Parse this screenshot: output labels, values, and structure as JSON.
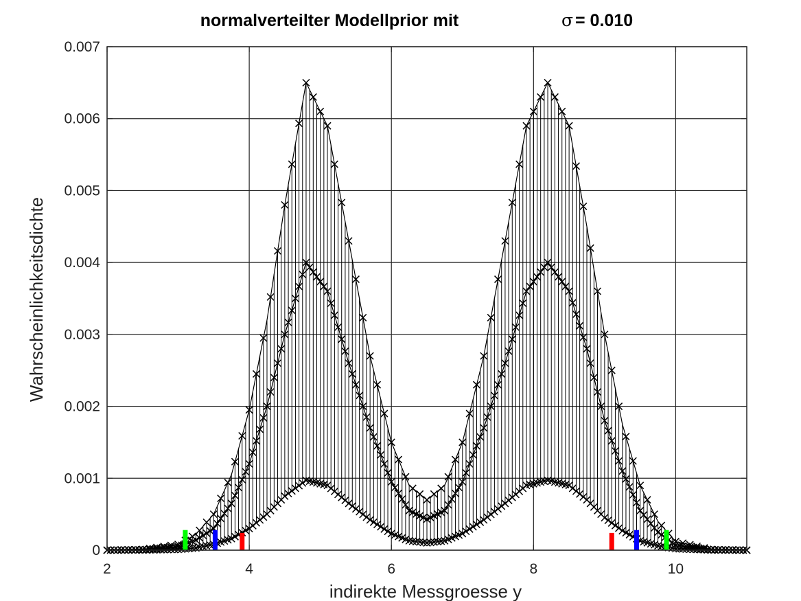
{
  "chart_data": {
    "type": "line",
    "title": "normalverteilter Modellprior mit",
    "title_symbol": "σ",
    "title_value": " = 0.010",
    "xlabel": "indirekte Messgroesse y",
    "ylabel": "Wahrscheinlichkeitsdichte",
    "xlim": [
      2,
      11
    ],
    "ylim": [
      0,
      0.007
    ],
    "x_ticks": [
      2,
      4,
      6,
      8,
      10
    ],
    "x_tick_labels": [
      "2",
      "4",
      "6",
      "8",
      "10"
    ],
    "y_ticks": [
      0,
      0.001,
      0.002,
      0.003,
      0.004,
      0.005,
      0.006,
      0.007
    ],
    "y_tick_labels": [
      "0",
      "0.001",
      "0.002",
      "0.003",
      "0.004",
      "0.005",
      "0.006",
      "0.007"
    ],
    "grid": true,
    "legend": "none",
    "marker": "x",
    "series": [
      {
        "x": [
          2.0,
          2.5,
          3.0,
          3.25,
          3.5,
          3.75,
          4.0,
          4.25,
          4.5,
          4.8,
          5.1,
          5.4,
          5.7,
          6.0,
          6.25,
          6.5,
          6.75,
          7.0,
          7.3,
          7.6,
          7.9,
          8.2,
          8.5,
          8.75,
          9.0,
          9.25,
          9.5,
          9.75,
          10.0,
          10.5,
          11.0
        ],
        "y": [
          0.0,
          1e-05,
          8e-05,
          0.00022,
          0.0005,
          0.00105,
          0.00195,
          0.0032,
          0.0048,
          0.0065,
          0.0059,
          0.0043,
          0.0027,
          0.0015,
          0.0009,
          0.0007,
          0.0009,
          0.0015,
          0.0027,
          0.0043,
          0.0059,
          0.0065,
          0.0059,
          0.0045,
          0.003,
          0.00175,
          0.0009,
          0.0004,
          0.00012,
          1e-05,
          0.0
        ]
      },
      {
        "x": [
          2.0,
          2.5,
          3.0,
          3.25,
          3.5,
          3.75,
          4.0,
          4.25,
          4.5,
          4.8,
          5.1,
          5.4,
          5.7,
          6.0,
          6.25,
          6.5,
          6.75,
          7.0,
          7.3,
          7.6,
          7.9,
          8.2,
          8.5,
          8.75,
          9.0,
          9.25,
          9.5,
          9.75,
          10.0,
          10.5,
          11.0
        ],
        "y": [
          0.0,
          6e-06,
          5e-05,
          0.00014,
          0.0003,
          0.00065,
          0.0012,
          0.002,
          0.003,
          0.004,
          0.0036,
          0.0026,
          0.0017,
          0.00095,
          0.00055,
          0.00043,
          0.00055,
          0.00095,
          0.0017,
          0.0026,
          0.0036,
          0.004,
          0.0036,
          0.0028,
          0.0018,
          0.0011,
          0.00055,
          0.00025,
          7e-05,
          6e-06,
          0.0
        ]
      },
      {
        "x": [
          2.0,
          2.5,
          3.0,
          3.25,
          3.5,
          3.75,
          4.0,
          4.25,
          4.5,
          4.8,
          5.1,
          5.4,
          5.7,
          6.0,
          6.25,
          6.5,
          6.75,
          7.0,
          7.3,
          7.6,
          7.9,
          8.2,
          8.5,
          8.75,
          9.0,
          9.25,
          9.5,
          9.75,
          10.0,
          10.5,
          11.0
        ],
        "y": [
          0.0,
          2e-06,
          1e-05,
          3e-05,
          8e-05,
          0.00016,
          0.0003,
          0.0005,
          0.00075,
          0.00097,
          0.0009,
          0.00065,
          0.00042,
          0.00023,
          0.00013,
          0.0001,
          0.00013,
          0.00023,
          0.00042,
          0.00065,
          0.0009,
          0.00097,
          0.0009,
          0.0007,
          0.00045,
          0.00027,
          0.00013,
          6e-05,
          2e-05,
          2e-06,
          0.0
        ]
      }
    ],
    "vertical_markers": [
      {
        "x": 3.1,
        "height": 0.00028,
        "color": "#00ff00"
      },
      {
        "x": 3.52,
        "height": 0.00028,
        "color": "#0000ff"
      },
      {
        "x": 3.9,
        "height": 0.00024,
        "color": "#ff0000"
      },
      {
        "x": 9.1,
        "height": 0.00024,
        "color": "#ff0000"
      },
      {
        "x": 9.45,
        "height": 0.00028,
        "color": "#0000ff"
      },
      {
        "x": 9.87,
        "height": 0.00028,
        "color": "#00ff00"
      }
    ],
    "colors": {
      "data": "#000000",
      "grid": "#262626",
      "axis": "#262626"
    }
  }
}
